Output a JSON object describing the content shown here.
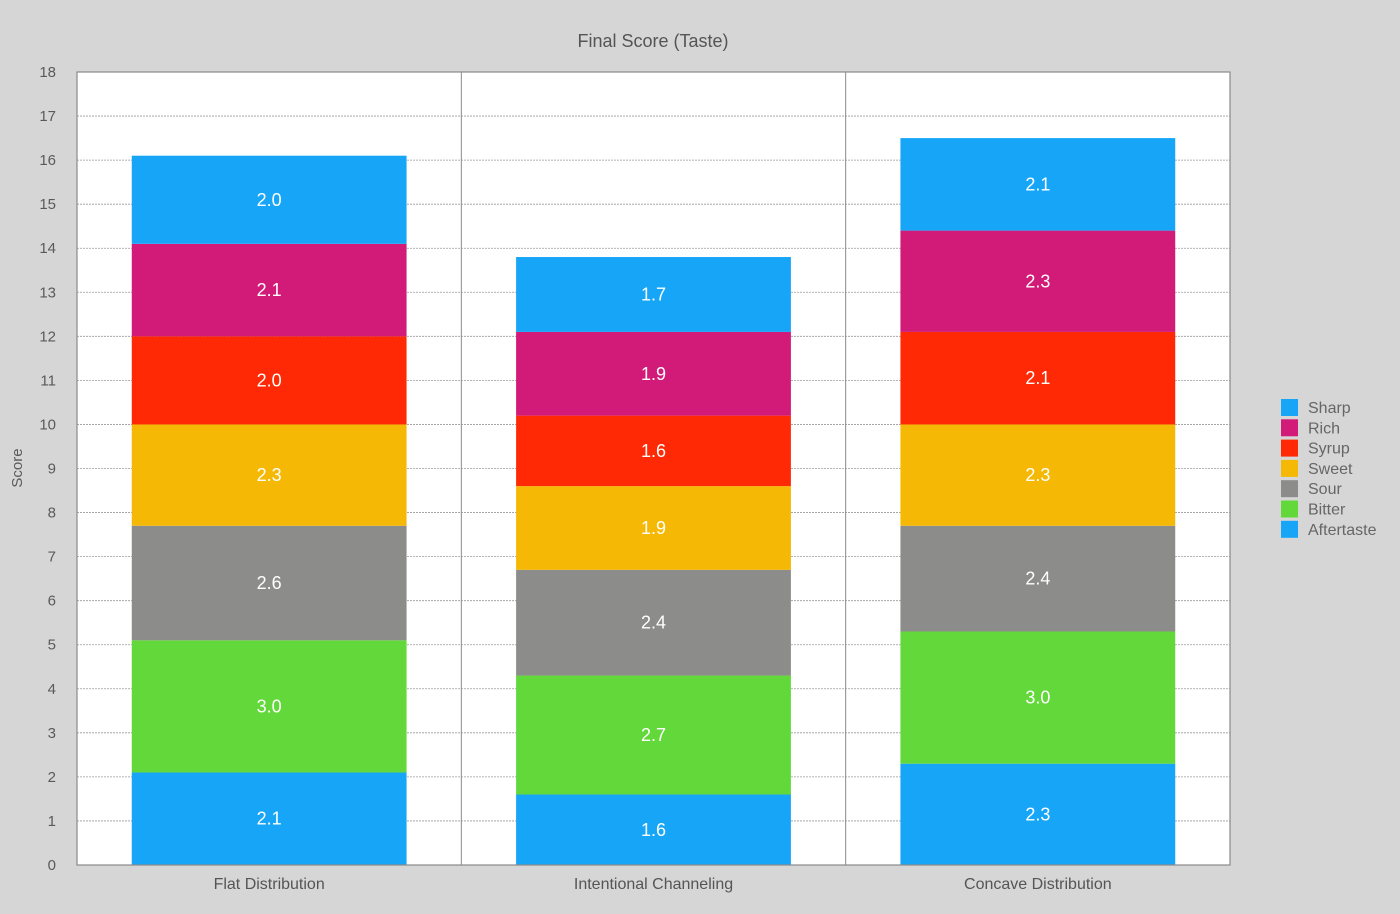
{
  "chart_data": {
    "type": "bar",
    "stacked": true,
    "title": "Final Score (Taste)",
    "xlabel": "",
    "ylabel": "Score",
    "ylim": [
      0,
      18
    ],
    "yticks": [
      0,
      1,
      2,
      3,
      4,
      5,
      6,
      7,
      8,
      9,
      10,
      11,
      12,
      13,
      14,
      15,
      16,
      17,
      18
    ],
    "grid": true,
    "legend_position": "right",
    "categories": [
      "Flat Distribution",
      "Intentional Channeling",
      "Concave Distribution"
    ],
    "series": [
      {
        "name": "Aftertaste",
        "color": "#17a6f7",
        "values": [
          2.1,
          1.6,
          2.3
        ]
      },
      {
        "name": "Bitter",
        "color": "#62d83a",
        "values": [
          3.0,
          2.7,
          3.0
        ]
      },
      {
        "name": "Sour",
        "color": "#8c8c8a",
        "values": [
          2.6,
          2.4,
          2.4
        ]
      },
      {
        "name": "Sweet",
        "color": "#f5b805",
        "values": [
          2.3,
          1.9,
          2.3
        ]
      },
      {
        "name": "Syrup",
        "color": "#ff2a05",
        "values": [
          2.0,
          1.6,
          2.1
        ]
      },
      {
        "name": "Rich",
        "color": "#d21a78",
        "values": [
          2.1,
          1.9,
          2.3
        ]
      },
      {
        "name": "Sharp",
        "color": "#17a6f7",
        "values": [
          2.0,
          1.7,
          2.1
        ]
      }
    ],
    "legend_order": [
      "Sharp",
      "Rich",
      "Syrup",
      "Sweet",
      "Sour",
      "Bitter",
      "Aftertaste"
    ]
  }
}
